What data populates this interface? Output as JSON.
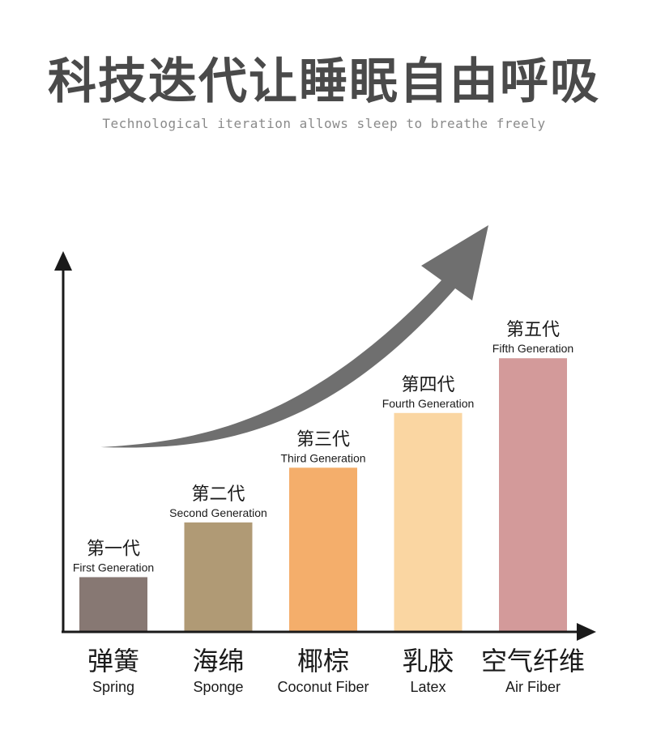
{
  "header": {
    "title": "科技迭代让睡眠自由呼吸",
    "subtitle": "Technological iteration allows sleep to breathe freely"
  },
  "chart_data": {
    "type": "bar",
    "categories": [
      "弹簧",
      "海绵",
      "椰棕",
      "乳胶",
      "空气纤维"
    ],
    "categories_en": [
      "Spring",
      "Sponge",
      "Coconut Fiber",
      "Latex",
      "Air Fiber"
    ],
    "values": [
      1,
      2,
      3,
      4,
      5
    ],
    "bar_labels_cn": [
      "第一代",
      "第二代",
      "第三代",
      "第四代",
      "第五代"
    ],
    "bar_labels_en": [
      "First Generation",
      "Second Generation",
      "Third Generation",
      "Fourth Generation",
      "Fifth Generation"
    ],
    "colors": [
      "#877873",
      "#b09a75",
      "#f4ae6b",
      "#fad6a2",
      "#d39a9a"
    ],
    "ylim": [
      0,
      6.75
    ],
    "grid": false,
    "legend": "none",
    "axis_color": "#1a1a1a",
    "trend_arrow_color": "#6f6f6f"
  }
}
